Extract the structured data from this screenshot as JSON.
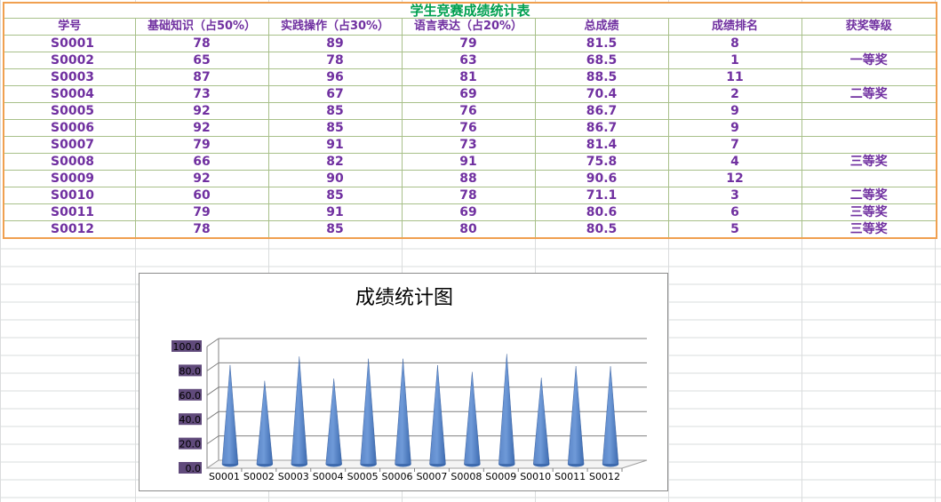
{
  "table": {
    "title": "学生竞赛成绩统计表",
    "headers": [
      "学号",
      "基础知识（占50%）",
      "实践操作（占30%）",
      "语言表达（占20%）",
      "总成绩",
      "成绩排名",
      "获奖等级"
    ],
    "rows": [
      [
        "S0001",
        "78",
        "89",
        "79",
        "81.5",
        "8",
        ""
      ],
      [
        "S0002",
        "65",
        "78",
        "63",
        "68.5",
        "1",
        "一等奖"
      ],
      [
        "S0003",
        "87",
        "96",
        "81",
        "88.5",
        "11",
        ""
      ],
      [
        "S0004",
        "73",
        "67",
        "69",
        "70.4",
        "2",
        "二等奖"
      ],
      [
        "S0005",
        "92",
        "85",
        "76",
        "86.7",
        "9",
        ""
      ],
      [
        "S0006",
        "92",
        "85",
        "76",
        "86.7",
        "9",
        ""
      ],
      [
        "S0007",
        "79",
        "91",
        "73",
        "81.4",
        "7",
        ""
      ],
      [
        "S0008",
        "66",
        "82",
        "91",
        "75.8",
        "4",
        "三等奖"
      ],
      [
        "S0009",
        "92",
        "90",
        "88",
        "90.6",
        "12",
        ""
      ],
      [
        "S0010",
        "60",
        "85",
        "78",
        "71.1",
        "3",
        "二等奖"
      ],
      [
        "S0011",
        "79",
        "91",
        "69",
        "80.6",
        "6",
        "三等奖"
      ],
      [
        "S0012",
        "78",
        "85",
        "80",
        "80.5",
        "5",
        "三等奖"
      ]
    ]
  },
  "chart_data": {
    "type": "bar",
    "style": "3d-cone",
    "title": "成绩统计图",
    "categories": [
      "S0001",
      "S0002",
      "S0003",
      "S0004",
      "S0005",
      "S0006",
      "S0007",
      "S0008",
      "S0009",
      "S0010",
      "S0011",
      "S0012"
    ],
    "values": [
      81.5,
      68.5,
      88.5,
      70.4,
      86.7,
      86.7,
      81.4,
      75.8,
      90.6,
      71.1,
      80.6,
      80.5
    ],
    "y_ticks": [
      "0.0",
      "20.0",
      "40.0",
      "60.0",
      "80.0",
      "100.0"
    ],
    "ylim": [
      0,
      100
    ],
    "legend": "none",
    "grid": true,
    "colors": {
      "cone_light": "#6f9ad8",
      "cone_dark": "#3d6bb0",
      "tick_label_bg": "#604a7b",
      "gridline": "#808080"
    }
  }
}
